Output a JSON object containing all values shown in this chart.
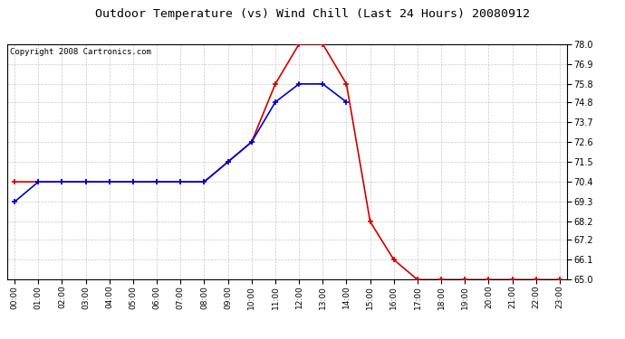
{
  "title": "Outdoor Temperature (vs) Wind Chill (Last 24 Hours) 20080912",
  "copyright_text": "Copyright 2008 Cartronics.com",
  "hours": [
    0,
    1,
    2,
    3,
    4,
    5,
    6,
    7,
    8,
    9,
    10,
    11,
    12,
    13,
    14,
    15,
    16,
    17,
    18,
    19,
    20,
    21,
    22,
    23
  ],
  "outdoor_temp": [
    70.4,
    70.4,
    70.4,
    70.4,
    70.4,
    70.4,
    70.4,
    70.4,
    70.4,
    71.5,
    72.6,
    75.8,
    78.0,
    78.0,
    75.8,
    68.2,
    66.1,
    65.0,
    65.0,
    65.0,
    65.0,
    65.0,
    65.0,
    65.0
  ],
  "wind_chill": [
    69.3,
    70.4,
    70.4,
    70.4,
    70.4,
    70.4,
    70.4,
    70.4,
    70.4,
    71.5,
    72.6,
    74.8,
    75.8,
    75.8,
    74.8,
    null,
    null,
    null,
    null,
    null,
    null,
    null,
    null,
    null
  ],
  "ylim": [
    65.0,
    78.0
  ],
  "yticks": [
    65.0,
    66.1,
    67.2,
    68.2,
    69.3,
    70.4,
    71.5,
    72.6,
    73.7,
    74.8,
    75.8,
    76.9,
    78.0
  ],
  "outdoor_color": "#cc0000",
  "wind_chill_color": "#0000cc",
  "bg_color": "#ffffff",
  "plot_bg_color": "#ffffff",
  "grid_color": "#bbbbbb",
  "title_color": "#000000",
  "title_fontsize": 9.5,
  "copyright_fontsize": 6.5
}
